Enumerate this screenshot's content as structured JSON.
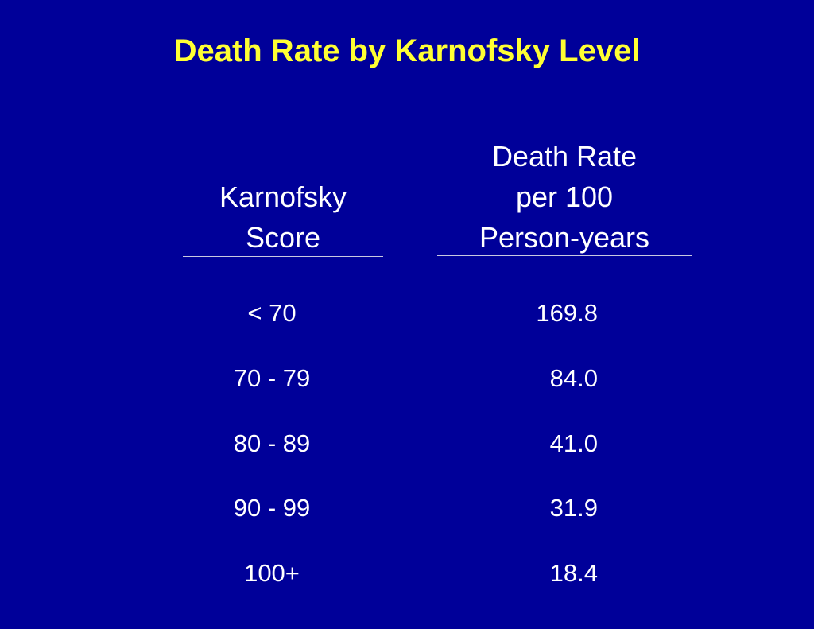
{
  "slide": {
    "title": "Death Rate by Karnofsky Level",
    "background_color": "#000099",
    "title_color": "#ffff33"
  },
  "table": {
    "headers": {
      "score": [
        "Karnofsky",
        "Score"
      ],
      "rate": [
        "Death Rate",
        "per 100",
        "Person-years"
      ]
    },
    "rows": [
      {
        "score": "< 70",
        "rate": "169.8"
      },
      {
        "score": "70 - 79",
        "rate": "84.0"
      },
      {
        "score": "80 - 89",
        "rate": "41.0"
      },
      {
        "score": "90 - 99",
        "rate": "31.9"
      },
      {
        "score": "100+",
        "rate": "18.4"
      }
    ]
  }
}
